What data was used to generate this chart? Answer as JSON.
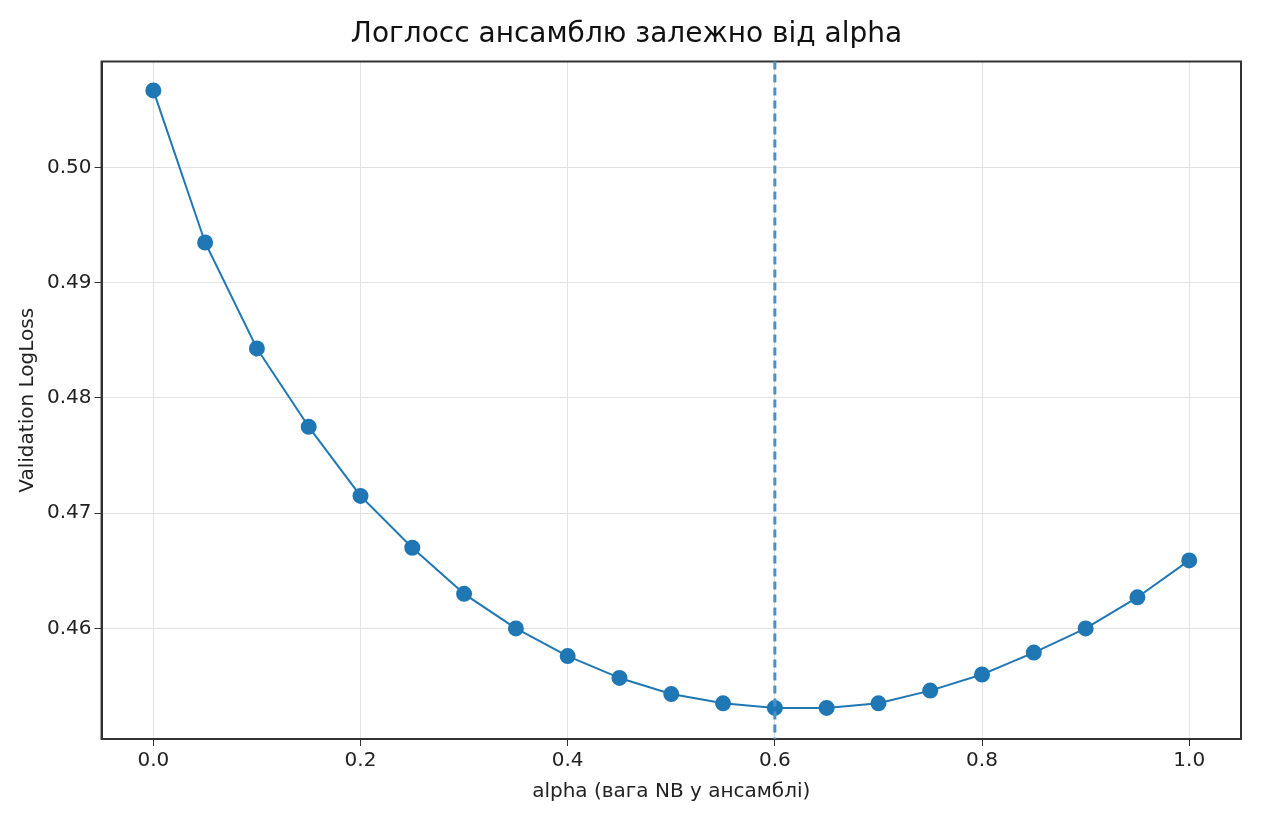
{
  "chart_data": {
    "type": "line",
    "title": "Логлосс ансамблю залежно від alpha",
    "xlabel": "alpha (вага NB у ансамблі)",
    "ylabel": "Validation LogLoss",
    "x": [
      0,
      0.05,
      0.1,
      0.15,
      0.2,
      0.25,
      0.3,
      0.35,
      0.4,
      0.45,
      0.5,
      0.55,
      0.6,
      0.65,
      0.7,
      0.75,
      0.8,
      0.85,
      0.9,
      0.95,
      1.0
    ],
    "series": [
      {
        "color": "#1f77b4",
        "values": [
          0.5067,
          0.4935,
          0.4843,
          0.4775,
          0.4715,
          0.467,
          0.463,
          0.46,
          0.4576,
          0.4557,
          0.4543,
          0.4535,
          0.4531,
          0.4531,
          0.4535,
          0.4546,
          0.456,
          0.4579,
          0.46,
          0.4627,
          0.4659
        ]
      }
    ],
    "xlim": [
      -0.05,
      1.05
    ],
    "ylim": [
      0.4504,
      0.5092
    ],
    "xticks": [
      {
        "value": 0,
        "label": "0.0"
      },
      {
        "value": 0.2,
        "label": "0.2"
      },
      {
        "value": 0.4,
        "label": "0.4"
      },
      {
        "value": 0.6,
        "label": "0.6"
      },
      {
        "value": 0.8,
        "label": "0.8"
      },
      {
        "value": 1,
        "label": "1.0"
      }
    ],
    "yticks": [
      0.46,
      0.47,
      0.48,
      0.49,
      {
        "value": 0.5,
        "label": "0.50"
      }
    ],
    "ref_lines": [
      {
        "axis": "x",
        "value": 0.6,
        "color": "#4a90c8",
        "line_style": "dashed"
      }
    ],
    "grid": true,
    "legend": false,
    "marker": "circle",
    "line_style": "solid"
  }
}
